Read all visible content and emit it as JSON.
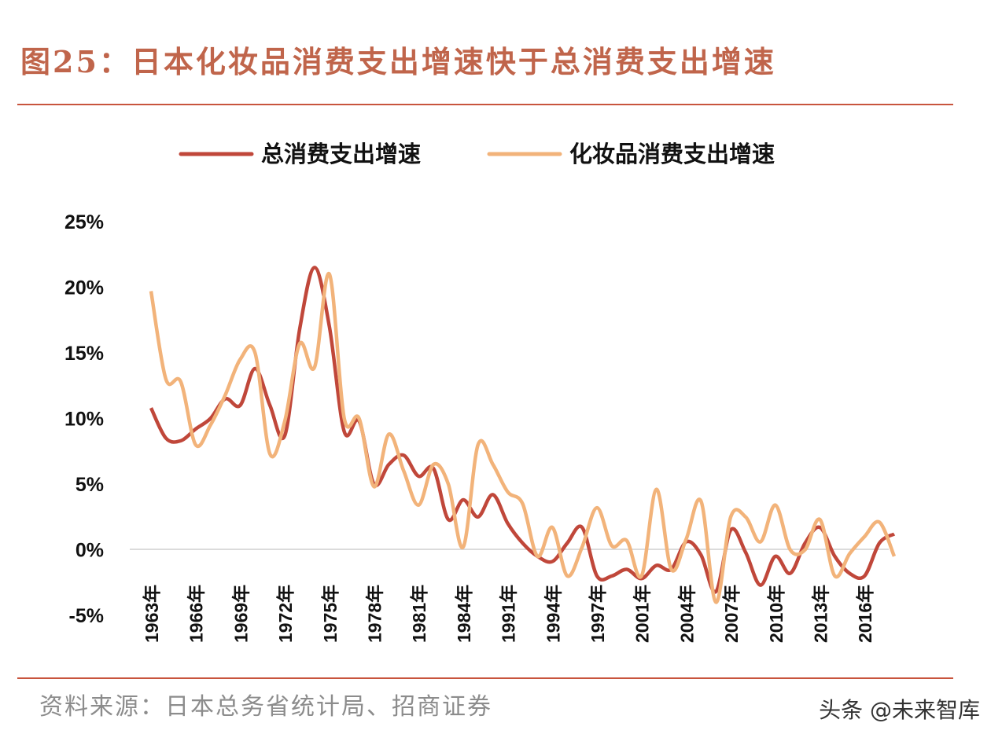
{
  "header": {
    "title": "图25：日本化妆品消费支出增速快于总消费支出增速"
  },
  "footer": {
    "source": "资料来源：日本总务省统计局、招商证券",
    "watermark": "头条 @未来智库"
  },
  "colors": {
    "total": "#c0473a",
    "cosmetics": "#f2b37a",
    "rule": "#c8543d",
    "title": "#c0654b"
  },
  "chart_data": {
    "type": "line",
    "title": "",
    "xlabel": "",
    "ylabel": "",
    "ylim": [
      -5,
      25
    ],
    "yticks": [
      "25%",
      "20%",
      "15%",
      "10%",
      "5%",
      "0%",
      "-5%"
    ],
    "xticks": [
      "1963年",
      "1966年",
      "1969年",
      "1972年",
      "1975年",
      "1978年",
      "1981年",
      "1984年",
      "1991年",
      "1994年",
      "1997年",
      "2001年",
      "2004年",
      "2007年",
      "2010年",
      "2013年",
      "2016年"
    ],
    "legend": "top",
    "series": [
      {
        "name": "总消费支出增速",
        "points": [
          [
            0,
            10.8
          ],
          [
            1,
            8.5
          ],
          [
            2,
            8.3
          ],
          [
            3,
            9.2
          ],
          [
            4,
            10.0
          ],
          [
            5,
            11.5
          ],
          [
            6,
            11.0
          ],
          [
            7,
            13.8
          ],
          [
            8,
            11.0
          ],
          [
            9,
            8.7
          ],
          [
            10,
            16.8
          ],
          [
            11,
            21.5
          ],
          [
            12,
            17.0
          ],
          [
            13,
            9.0
          ],
          [
            14,
            9.8
          ],
          [
            15,
            5.0
          ],
          [
            16,
            6.5
          ],
          [
            17,
            7.2
          ],
          [
            18,
            5.6
          ],
          [
            19,
            6.2
          ],
          [
            20,
            2.3
          ],
          [
            21,
            3.8
          ],
          [
            22,
            2.5
          ],
          [
            23,
            4.2
          ],
          [
            24,
            2.0
          ],
          [
            25,
            0.5
          ],
          [
            26,
            -0.5
          ],
          [
            27,
            -0.9
          ],
          [
            28,
            0.5
          ],
          [
            29,
            1.7
          ],
          [
            30,
            -2.0
          ],
          [
            31,
            -2.0
          ],
          [
            32,
            -1.5
          ],
          [
            33,
            -2.2
          ],
          [
            34,
            -1.2
          ],
          [
            35,
            -1.5
          ],
          [
            36,
            0.6
          ],
          [
            37,
            -0.4
          ],
          [
            38,
            -3.2
          ],
          [
            39,
            1.5
          ],
          [
            40,
            -0.2
          ],
          [
            41,
            -2.7
          ],
          [
            42,
            -0.5
          ],
          [
            43,
            -1.8
          ],
          [
            44,
            0.5
          ],
          [
            45,
            1.7
          ],
          [
            46,
            -0.5
          ],
          [
            47,
            -1.8
          ],
          [
            48,
            -2.0
          ],
          [
            49,
            0.5
          ],
          [
            50,
            1.2
          ]
        ]
      },
      {
        "name": "化妆品消费支出增速",
        "points": [
          [
            0,
            19.7
          ],
          [
            1,
            13.0
          ],
          [
            2,
            12.8
          ],
          [
            3,
            8.0
          ],
          [
            4,
            9.5
          ],
          [
            5,
            11.8
          ],
          [
            6,
            14.5
          ],
          [
            7,
            15.0
          ],
          [
            8,
            7.3
          ],
          [
            9,
            9.8
          ],
          [
            10,
            15.7
          ],
          [
            11,
            13.9
          ],
          [
            12,
            21.0
          ],
          [
            13,
            10.0
          ],
          [
            14,
            10.0
          ],
          [
            15,
            4.8
          ],
          [
            16,
            8.8
          ],
          [
            17,
            6.0
          ],
          [
            18,
            3.4
          ],
          [
            19,
            6.5
          ],
          [
            20,
            5.0
          ],
          [
            21,
            0.2
          ],
          [
            22,
            8.0
          ],
          [
            23,
            6.5
          ],
          [
            24,
            4.4
          ],
          [
            25,
            3.5
          ],
          [
            26,
            -0.5
          ],
          [
            27,
            1.7
          ],
          [
            28,
            -2.0
          ],
          [
            29,
            0.2
          ],
          [
            30,
            3.2
          ],
          [
            31,
            0.3
          ],
          [
            32,
            0.7
          ],
          [
            33,
            -2.0
          ],
          [
            34,
            4.6
          ],
          [
            35,
            -1.5
          ],
          [
            36,
            0.8
          ],
          [
            37,
            3.7
          ],
          [
            38,
            -4.0
          ],
          [
            39,
            2.5
          ],
          [
            40,
            2.5
          ],
          [
            41,
            0.6
          ],
          [
            42,
            3.4
          ],
          [
            43,
            0.0
          ],
          [
            44,
            0.0
          ],
          [
            45,
            2.3
          ],
          [
            46,
            -2.0
          ],
          [
            47,
            -0.3
          ],
          [
            48,
            1.0
          ],
          [
            49,
            2.1
          ],
          [
            50,
            -0.5
          ]
        ]
      }
    ]
  }
}
